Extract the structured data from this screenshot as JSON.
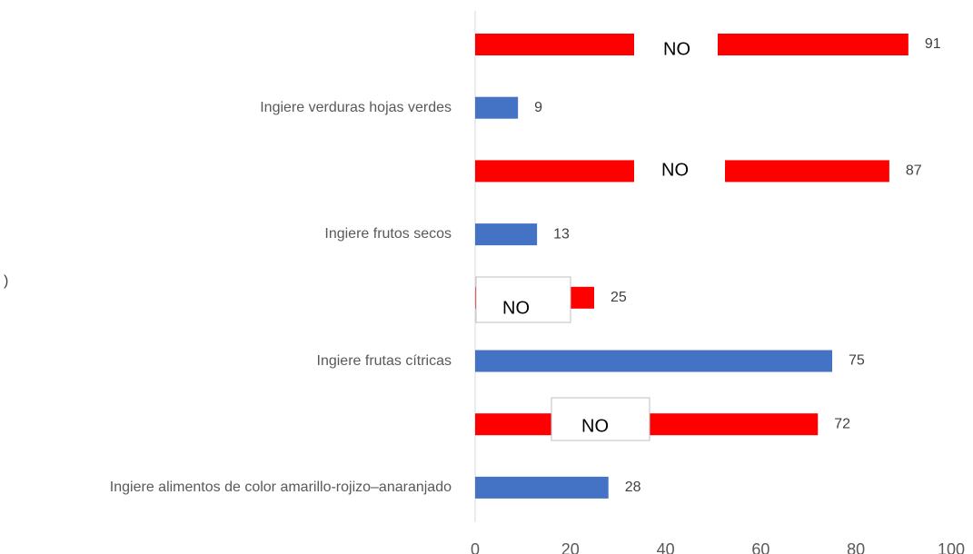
{
  "chart_data": {
    "type": "bar",
    "orientation": "horizontal",
    "categories": [
      null,
      "Ingiere verduras hojas verdes",
      null,
      "Ingiere frutos secos",
      null,
      "Ingiere frutas cítricas",
      null,
      "Ingiere alimentos de color amarillo-rojizo–anaranjado"
    ],
    "values": [
      91,
      9,
      87,
      13,
      25,
      75,
      72,
      28
    ],
    "colors": [
      "#ff0000",
      "#4472c4",
      "#ff0000",
      "#4472c4",
      "#ff0000",
      "#4472c4",
      "#ff0000",
      "#4472c4"
    ],
    "xlim": [
      0,
      100
    ],
    "xticks": [
      0,
      20,
      40,
      60,
      80,
      100
    ],
    "annotations": [
      "NO",
      "NO",
      "NO",
      "NO"
    ],
    "fragment": ")"
  }
}
